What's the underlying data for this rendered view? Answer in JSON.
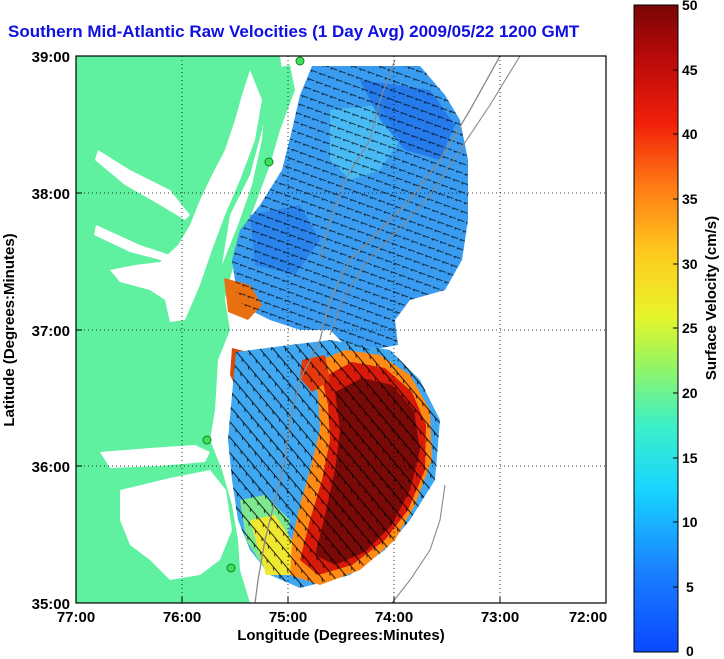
{
  "title": "Southern Mid-Atlantic Raw Velocities (1 Day Avg) 2009/05/22 1200 GMT",
  "x_axis": {
    "label": "Longitude (Degrees:Minutes)",
    "ticks": [
      "77:00",
      "76:00",
      "75:00",
      "74:00",
      "73:00",
      "72:00"
    ]
  },
  "y_axis": {
    "label": "Latitude (Degrees:Minutes)",
    "ticks": [
      "39:00",
      "38:00",
      "37:00",
      "36:00",
      "35:00"
    ]
  },
  "colorbar": {
    "label": "Surface Velocity (cm/s)",
    "ticks": [
      "50",
      "45",
      "40",
      "35",
      "30",
      "25",
      "20",
      "15",
      "10",
      "5",
      "0"
    ],
    "range": [
      0,
      50
    ]
  },
  "map": {
    "extent": {
      "lon": [
        -77,
        -72
      ],
      "lat": [
        35,
        39
      ]
    },
    "grid": "dotted",
    "land_color": "#5ff0a0",
    "station_color": "#3ee05a"
  }
}
